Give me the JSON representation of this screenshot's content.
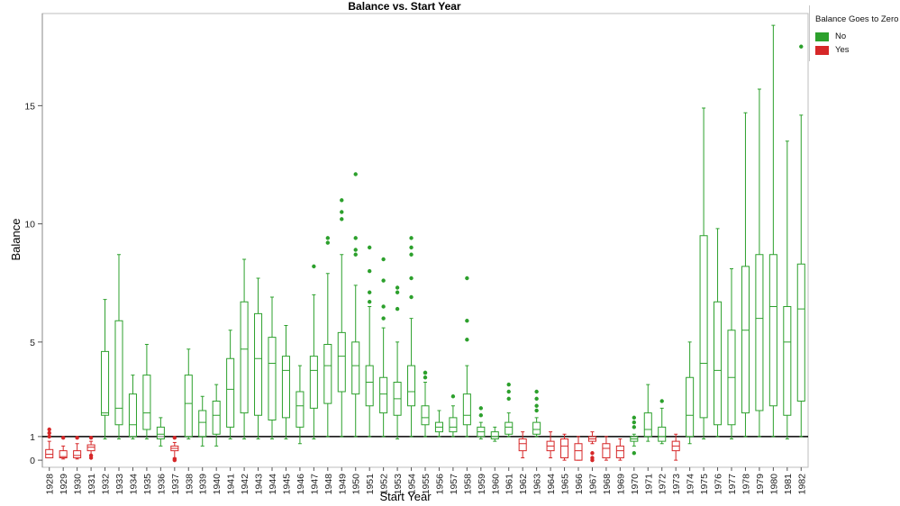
{
  "chart_data": {
    "type": "boxplot",
    "title": "Balance vs. Start Year",
    "xlabel": "Start Year",
    "ylabel": "Balance",
    "ylim": [
      -0.3,
      18.9
    ],
    "yticks": [
      0,
      1,
      5,
      10,
      15
    ],
    "reference_line": 1,
    "legend": {
      "title": "Balance Goes to Zero",
      "placement": "top-right",
      "items": [
        {
          "label": "No",
          "color": "#2ca02c"
        },
        {
          "label": "Yes",
          "color": "#d62728"
        }
      ]
    },
    "colors": {
      "No": "#2ca02c",
      "Yes": "#d62728",
      "reference": "#000000"
    },
    "boxes": [
      {
        "year": "1928",
        "group": "Yes",
        "min": 0.1,
        "q1": 0.1,
        "median": 0.25,
        "q3": 0.45,
        "max": 0.8,
        "outliers": [
          1.0,
          1.15,
          1.3
        ]
      },
      {
        "year": "1929",
        "group": "Yes",
        "min": 0.05,
        "q1": 0.1,
        "median": 0.15,
        "q3": 0.4,
        "max": 0.6,
        "outliers": [
          0.95
        ]
      },
      {
        "year": "1930",
        "group": "Yes",
        "min": 0.05,
        "q1": 0.1,
        "median": 0.2,
        "q3": 0.4,
        "max": 0.7,
        "outliers": [
          0.95
        ]
      },
      {
        "year": "1931",
        "group": "Yes",
        "min": 0.2,
        "q1": 0.4,
        "median": 0.55,
        "q3": 0.65,
        "max": 0.8,
        "outliers": [
          0.95,
          0.2,
          0.1
        ]
      },
      {
        "year": "1932",
        "group": "No",
        "min": 0.9,
        "q1": 1.9,
        "median": 2.0,
        "q3": 4.6,
        "max": 6.8,
        "outliers": []
      },
      {
        "year": "1933",
        "group": "No",
        "min": 0.9,
        "q1": 1.5,
        "median": 2.2,
        "q3": 5.9,
        "max": 8.7,
        "outliers": []
      },
      {
        "year": "1934",
        "group": "No",
        "min": 0.9,
        "q1": 1.0,
        "median": 1.5,
        "q3": 2.8,
        "max": 3.6,
        "outliers": []
      },
      {
        "year": "1935",
        "group": "No",
        "min": 0.9,
        "q1": 1.3,
        "median": 2.0,
        "q3": 3.6,
        "max": 4.9,
        "outliers": []
      },
      {
        "year": "1936",
        "group": "No",
        "min": 0.6,
        "q1": 0.9,
        "median": 1.1,
        "q3": 1.4,
        "max": 1.8,
        "outliers": []
      },
      {
        "year": "1937",
        "group": "Yes",
        "min": 0.1,
        "q1": 0.4,
        "median": 0.5,
        "q3": 0.6,
        "max": 0.75,
        "outliers": [
          0.95,
          0.05,
          0.0
        ]
      },
      {
        "year": "1938",
        "group": "No",
        "min": 0.9,
        "q1": 1.0,
        "median": 2.4,
        "q3": 3.6,
        "max": 4.7,
        "outliers": []
      },
      {
        "year": "1939",
        "group": "No",
        "min": 0.6,
        "q1": 1.0,
        "median": 1.6,
        "q3": 2.1,
        "max": 2.7,
        "outliers": []
      },
      {
        "year": "1940",
        "group": "No",
        "min": 0.6,
        "q1": 1.1,
        "median": 1.9,
        "q3": 2.5,
        "max": 3.2,
        "outliers": []
      },
      {
        "year": "1941",
        "group": "No",
        "min": 0.9,
        "q1": 1.4,
        "median": 3.0,
        "q3": 4.3,
        "max": 5.5,
        "outliers": []
      },
      {
        "year": "1942",
        "group": "No",
        "min": 0.9,
        "q1": 2.0,
        "median": 4.7,
        "q3": 6.7,
        "max": 8.5,
        "outliers": []
      },
      {
        "year": "1943",
        "group": "No",
        "min": 0.9,
        "q1": 1.9,
        "median": 4.3,
        "q3": 6.2,
        "max": 7.7,
        "outliers": []
      },
      {
        "year": "1944",
        "group": "No",
        "min": 0.9,
        "q1": 1.7,
        "median": 4.1,
        "q3": 5.2,
        "max": 6.9,
        "outliers": []
      },
      {
        "year": "1945",
        "group": "No",
        "min": 0.9,
        "q1": 1.8,
        "median": 3.8,
        "q3": 4.4,
        "max": 5.7,
        "outliers": []
      },
      {
        "year": "1946",
        "group": "No",
        "min": 0.7,
        "q1": 1.4,
        "median": 2.3,
        "q3": 2.9,
        "max": 4.0,
        "outliers": []
      },
      {
        "year": "1947",
        "group": "No",
        "min": 0.9,
        "q1": 2.2,
        "median": 3.8,
        "q3": 4.4,
        "max": 7.0,
        "outliers": [
          8.2
        ]
      },
      {
        "year": "1948",
        "group": "No",
        "min": 1.0,
        "q1": 2.4,
        "median": 4.0,
        "q3": 4.9,
        "max": 7.9,
        "outliers": [
          9.2,
          9.4
        ]
      },
      {
        "year": "1949",
        "group": "No",
        "min": 1.0,
        "q1": 2.9,
        "median": 4.4,
        "q3": 5.4,
        "max": 8.7,
        "outliers": [
          10.2,
          10.5,
          11.0
        ]
      },
      {
        "year": "1950",
        "group": "No",
        "min": 1.0,
        "q1": 2.8,
        "median": 4.0,
        "q3": 5.0,
        "max": 7.4,
        "outliers": [
          8.7,
          8.9,
          9.4,
          12.1
        ]
      },
      {
        "year": "1951",
        "group": "No",
        "min": 1.0,
        "q1": 2.3,
        "median": 3.3,
        "q3": 4.0,
        "max": 6.5,
        "outliers": [
          6.7,
          7.1,
          8.0,
          9.0
        ]
      },
      {
        "year": "1952",
        "group": "No",
        "min": 1.0,
        "q1": 2.0,
        "median": 2.8,
        "q3": 3.5,
        "max": 5.6,
        "outliers": [
          6.0,
          6.5,
          7.6,
          8.5
        ]
      },
      {
        "year": "1953",
        "group": "No",
        "min": 0.9,
        "q1": 1.9,
        "median": 2.6,
        "q3": 3.3,
        "max": 5.0,
        "outliers": [
          6.4,
          7.1,
          7.3
        ]
      },
      {
        "year": "1954",
        "group": "No",
        "min": 1.0,
        "q1": 2.3,
        "median": 2.9,
        "q3": 4.0,
        "max": 6.0,
        "outliers": [
          6.9,
          7.7,
          8.7,
          9.0,
          9.4
        ]
      },
      {
        "year": "1955",
        "group": "No",
        "min": 1.0,
        "q1": 1.5,
        "median": 1.8,
        "q3": 2.3,
        "max": 3.3,
        "outliers": [
          3.5,
          3.7,
          3.7
        ]
      },
      {
        "year": "1956",
        "group": "No",
        "min": 1.0,
        "q1": 1.2,
        "median": 1.4,
        "q3": 1.6,
        "max": 2.1,
        "outliers": []
      },
      {
        "year": "1957",
        "group": "No",
        "min": 1.0,
        "q1": 1.2,
        "median": 1.4,
        "q3": 1.8,
        "max": 2.3,
        "outliers": [
          2.7
        ]
      },
      {
        "year": "1958",
        "group": "No",
        "min": 1.0,
        "q1": 1.5,
        "median": 1.9,
        "q3": 2.8,
        "max": 4.0,
        "outliers": [
          5.1,
          5.9,
          7.7
        ]
      },
      {
        "year": "1959",
        "group": "No",
        "min": 0.9,
        "q1": 1.0,
        "median": 1.2,
        "q3": 1.4,
        "max": 1.6,
        "outliers": [
          1.9,
          2.2
        ]
      },
      {
        "year": "1960",
        "group": "No",
        "min": 0.8,
        "q1": 0.9,
        "median": 1.0,
        "q3": 1.2,
        "max": 1.4,
        "outliers": []
      },
      {
        "year": "1961",
        "group": "No",
        "min": 1.0,
        "q1": 1.1,
        "median": 1.4,
        "q3": 1.6,
        "max": 2.0,
        "outliers": [
          2.6,
          2.9,
          3.2
        ]
      },
      {
        "year": "1962",
        "group": "Yes",
        "min": 0.1,
        "q1": 0.4,
        "median": 0.7,
        "q3": 0.9,
        "max": 1.2,
        "outliers": []
      },
      {
        "year": "1963",
        "group": "No",
        "min": 1.0,
        "q1": 1.1,
        "median": 1.3,
        "q3": 1.6,
        "max": 1.8,
        "outliers": [
          2.1,
          2.3,
          2.6,
          2.9
        ]
      },
      {
        "year": "1964",
        "group": "Yes",
        "min": 0.1,
        "q1": 0.4,
        "median": 0.6,
        "q3": 0.8,
        "max": 1.2,
        "outliers": []
      },
      {
        "year": "1965",
        "group": "Yes",
        "min": 0.0,
        "q1": 0.1,
        "median": 0.6,
        "q3": 0.9,
        "max": 1.1,
        "outliers": []
      },
      {
        "year": "1966",
        "group": "Yes",
        "min": 0.0,
        "q1": 0.0,
        "median": 0.4,
        "q3": 0.7,
        "max": 1.0,
        "outliers": []
      },
      {
        "year": "1967",
        "group": "Yes",
        "min": 0.7,
        "q1": 0.8,
        "median": 0.9,
        "q3": 1.0,
        "max": 1.2,
        "outliers": [
          0.3,
          0.1,
          0.0
        ]
      },
      {
        "year": "1968",
        "group": "Yes",
        "min": 0.0,
        "q1": 0.1,
        "median": 0.5,
        "q3": 0.7,
        "max": 1.0,
        "outliers": []
      },
      {
        "year": "1969",
        "group": "Yes",
        "min": 0.0,
        "q1": 0.1,
        "median": 0.4,
        "q3": 0.6,
        "max": 0.9,
        "outliers": []
      },
      {
        "year": "1970",
        "group": "No",
        "min": 0.6,
        "q1": 0.8,
        "median": 0.9,
        "q3": 1.0,
        "max": 1.1,
        "outliers": [
          1.4,
          1.6,
          1.8,
          0.3
        ]
      },
      {
        "year": "1971",
        "group": "No",
        "min": 0.8,
        "q1": 1.0,
        "median": 1.3,
        "q3": 2.0,
        "max": 3.2,
        "outliers": []
      },
      {
        "year": "1972",
        "group": "No",
        "min": 0.7,
        "q1": 0.8,
        "median": 1.0,
        "q3": 1.4,
        "max": 2.2,
        "outliers": [
          2.5
        ]
      },
      {
        "year": "1973",
        "group": "Yes",
        "min": 0.0,
        "q1": 0.4,
        "median": 0.6,
        "q3": 0.8,
        "max": 1.1,
        "outliers": []
      },
      {
        "year": "1974",
        "group": "No",
        "min": 0.7,
        "q1": 1.0,
        "median": 1.9,
        "q3": 3.5,
        "max": 5.0,
        "outliers": []
      },
      {
        "year": "1975",
        "group": "No",
        "min": 0.9,
        "q1": 1.8,
        "median": 4.1,
        "q3": 9.5,
        "max": 14.9,
        "outliers": []
      },
      {
        "year": "1976",
        "group": "No",
        "min": 1.0,
        "q1": 1.5,
        "median": 3.8,
        "q3": 6.7,
        "max": 9.8,
        "outliers": []
      },
      {
        "year": "1977",
        "group": "No",
        "min": 0.9,
        "q1": 1.5,
        "median": 3.5,
        "q3": 5.5,
        "max": 8.1,
        "outliers": []
      },
      {
        "year": "1978",
        "group": "No",
        "min": 1.0,
        "q1": 2.0,
        "median": 5.5,
        "q3": 8.2,
        "max": 14.7,
        "outliers": []
      },
      {
        "year": "1979",
        "group": "No",
        "min": 1.0,
        "q1": 2.1,
        "median": 6.0,
        "q3": 8.7,
        "max": 15.7,
        "outliers": []
      },
      {
        "year": "1980",
        "group": "No",
        "min": 1.0,
        "q1": 2.3,
        "median": 6.5,
        "q3": 8.7,
        "max": 18.4,
        "outliers": []
      },
      {
        "year": "1981",
        "group": "No",
        "min": 0.9,
        "q1": 1.9,
        "median": 5.0,
        "q3": 6.5,
        "max": 13.5,
        "outliers": []
      },
      {
        "year": "1982",
        "group": "No",
        "min": 1.0,
        "q1": 2.5,
        "median": 6.4,
        "q3": 8.3,
        "max": 14.6,
        "outliers": [
          17.5
        ]
      }
    ]
  }
}
